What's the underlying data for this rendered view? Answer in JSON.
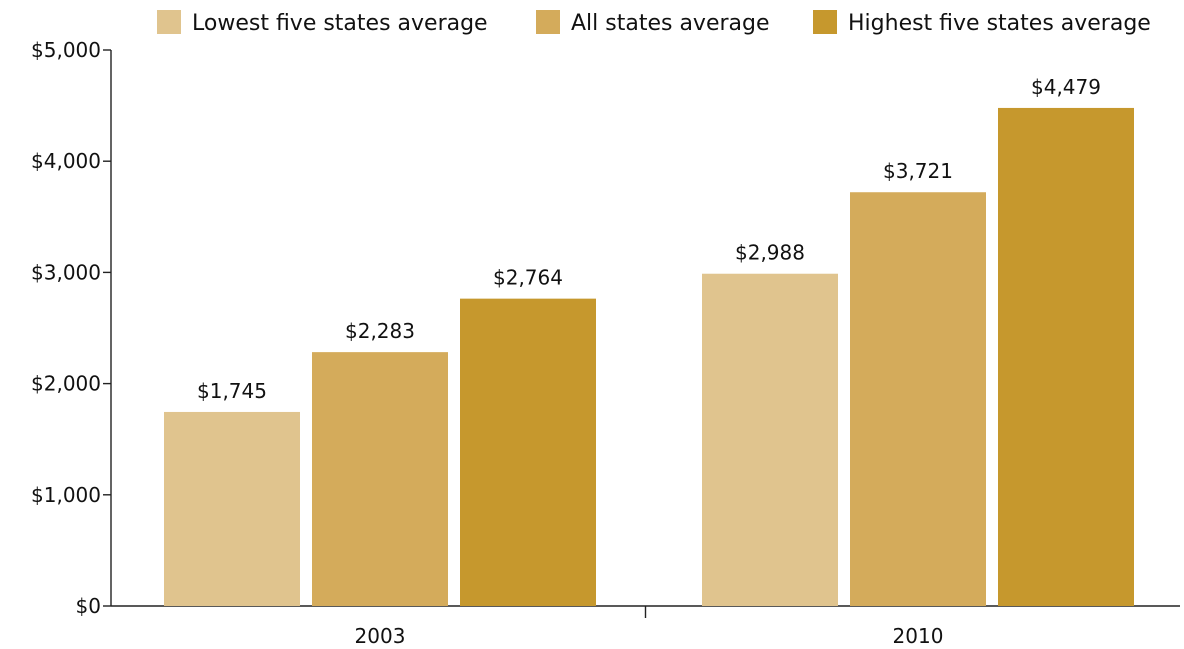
{
  "chart_data": {
    "type": "bar",
    "categories": [
      "2003",
      "2010"
    ],
    "series": [
      {
        "name": "Lowest five states average",
        "color": "#E0C48E",
        "values": [
          1745,
          2988
        ]
      },
      {
        "name": "All states average",
        "color": "#D4AB5B",
        "values": [
          2283,
          3721
        ]
      },
      {
        "name": "Highest five states average",
        "color": "#C6982D",
        "values": [
          2764,
          4479
        ]
      }
    ],
    "data_labels": [
      [
        "$1,745",
        "$2,988"
      ],
      [
        "$2,283",
        "$3,721"
      ],
      [
        "$2,764",
        "$4,479"
      ]
    ],
    "yticks": [
      0,
      1000,
      2000,
      3000,
      4000,
      5000
    ],
    "ytick_labels": [
      "$0",
      "$1,000",
      "$2,000",
      "$3,000",
      "$4,000",
      "$5,000"
    ],
    "ylim": [
      0,
      5000
    ],
    "legend_position": "top",
    "grid": false,
    "title": "",
    "xlabel": "",
    "ylabel": ""
  }
}
